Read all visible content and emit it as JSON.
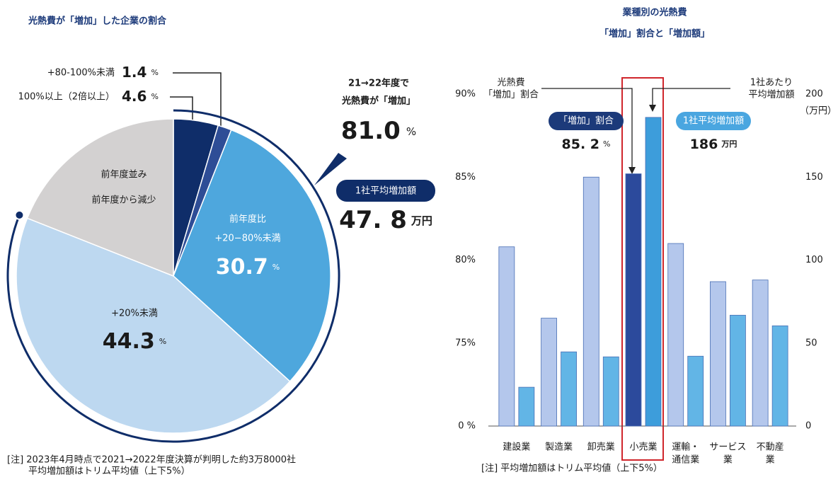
{
  "chart_data": [
    {
      "type": "pie",
      "title": "光熱費が「増加」した企業の割合",
      "categories": [
        [
          "100%以上（2倍以上）"
        ],
        [
          "+80-100%未満"
        ],
        [
          "前年度比",
          "+20−80%未満"
        ],
        [
          "+20%未満"
        ],
        [
          "前年度並み",
          "前年度から減少"
        ]
      ],
      "values": [
        4.6,
        1.4,
        30.7,
        44.3,
        19.0
      ],
      "colors": [
        "#0f2d69",
        "#2e4d96",
        "#4ea7dd",
        "#bdd8f0",
        "#d3d1d1"
      ],
      "value_unit": "%",
      "unlabeled_values": [
        4
      ],
      "annotations": {
        "ring_label": [
          "21→22年度で",
          "光熱費が「増加」"
        ],
        "ring_value": {
          "value": 81.0,
          "label": "81.0"
        },
        "ring_unit": "%",
        "badge": "1社平均増加額",
        "badge_value": {
          "value": 47.8,
          "label": "47. 8"
        },
        "badge_unit": "万円"
      },
      "footnote": [
        "[注]  2023年4月時点で2021→2022年度決算が判明した約3万8000社",
        "平均増加額はトリム平均値（上下5%）"
      ]
    },
    {
      "type": "bar",
      "title": [
        "業種別の光熱費",
        "「増加」割合と「増加額」"
      ],
      "categories": [
        [
          "建設業"
        ],
        [
          "製造業"
        ],
        [
          "卸売業"
        ],
        [
          "小売業"
        ],
        [
          "運輸・",
          "通信業"
        ],
        [
          "サービス",
          "業"
        ],
        [
          "不動産",
          "業"
        ]
      ],
      "series": [
        {
          "name": "「増加」割合",
          "color": "#b4c7ec",
          "highlight_color": "#2c4a9c",
          "values": [
            80.8,
            76.5,
            85.0,
            85.2,
            81.0,
            78.7,
            78.8
          ]
        },
        {
          "name": "1社平均増加額",
          "color": "#62b5e6",
          "highlight_color": "#3d9ddb",
          "axis": "y2",
          "values": [
            23.4,
            44.7,
            41.7,
            186,
            42.1,
            66.8,
            60.4
          ]
        }
      ],
      "highlight": 3,
      "ylim": [
        0,
        90
      ],
      "yticks": [
        {
          "value": 0,
          "label": "0 %"
        },
        {
          "value": 75,
          "label": "75%"
        },
        {
          "value": 80,
          "label": "80%"
        },
        {
          "value": 85,
          "label": "85%"
        },
        {
          "value": 90,
          "label": "90%"
        }
      ],
      "axis_break": true,
      "y2lim": [
        0,
        200
      ],
      "y2ticks": [
        0,
        50,
        100,
        150,
        200
      ],
      "y2unit": "（万円）",
      "ylabel": [
        "光熱費",
        "「増加」割合"
      ],
      "y2label": [
        "1社あたり",
        "平均増加額"
      ],
      "callouts": [
        {
          "value": 85.2,
          "label": "85. 2",
          "unit": "%"
        },
        {
          "value": 186,
          "unit": "万円"
        }
      ],
      "footnote": "[注]  平均増加額はトリム平均値（上下5%）"
    }
  ]
}
